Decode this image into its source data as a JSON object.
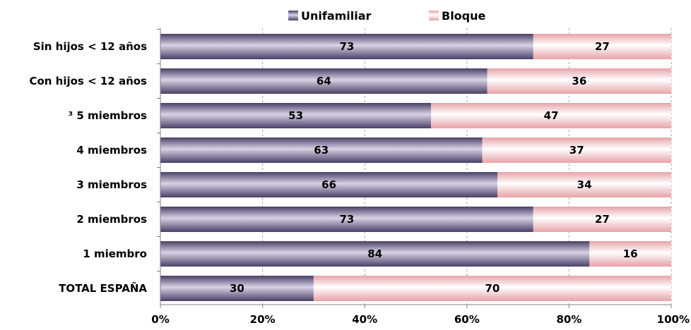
{
  "chart_data": {
    "type": "bar",
    "orientation": "horizontal",
    "stacked": "percent",
    "categories": [
      "Sin hijos < 12 años",
      "Con hijos < 12 años",
      "³ 5 miembros",
      "4 miembros",
      "3 miembros",
      "2 miembros",
      "1 miembro",
      "TOTAL ESPAÑA"
    ],
    "series": [
      {
        "name": "Unifamiliar",
        "values": [
          73,
          64,
          53,
          63,
          66,
          73,
          84,
          30
        ],
        "color": "#5c4f7a"
      },
      {
        "name": "Bloque",
        "values": [
          27,
          36,
          47,
          37,
          34,
          27,
          16,
          70
        ],
        "color": "#f2b8bc"
      }
    ],
    "xlim": [
      0,
      100
    ],
    "x_ticks": [
      "0%",
      "20%",
      "40%",
      "60%",
      "80%",
      "100%"
    ],
    "grid": true,
    "legend_position": "top"
  }
}
